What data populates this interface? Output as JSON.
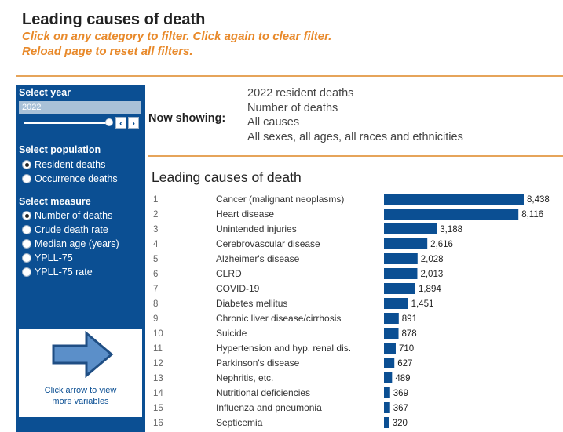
{
  "header": {
    "title": "Leading causes of death",
    "instruction_1": "Click on any category to filter. Click again to clear filter.",
    "instruction_2": "Reload page to reset all filters."
  },
  "sidebar": {
    "year_heading": "Select year",
    "year_value": "2022",
    "population_heading": "Select population",
    "population_options": [
      {
        "label": "Resident deaths",
        "selected": true
      },
      {
        "label": "Occurrence deaths",
        "selected": false
      }
    ],
    "measure_heading": "Select measure",
    "measure_options": [
      {
        "label": "Number of deaths",
        "selected": true
      },
      {
        "label": "Crude death rate",
        "selected": false
      },
      {
        "label": "Median age (years)",
        "selected": false
      },
      {
        "label": "YPLL-75",
        "selected": false
      },
      {
        "label": "YPLL-75 rate",
        "selected": false
      }
    ],
    "more_label_1": "Click arrow to view",
    "more_label_2": "more variables"
  },
  "now_showing": {
    "label": "Now showing:",
    "lines": [
      "2022 resident deaths",
      "Number of deaths",
      "All causes",
      "All sexes, all ages, all races and ethnicities"
    ]
  },
  "colors": {
    "accent": "#e8892a",
    "rule": "#e6a45a",
    "sidebar": "#0b4f93",
    "bar": "#0b4f93"
  },
  "chart_data": {
    "type": "bar",
    "orientation": "horizontal",
    "title": "Leading causes of death",
    "xlabel": "",
    "ylabel": "",
    "xlim": [
      0,
      8438
    ],
    "ranks": [
      "1",
      "2",
      "3",
      "4",
      "5",
      "6",
      "7",
      "8",
      "9",
      "10",
      "11",
      "12",
      "13",
      "14",
      "15",
      "16"
    ],
    "categories": [
      "Cancer (malignant neoplasms)",
      "Heart disease",
      "Unintended injuries",
      "Cerebrovascular disease",
      "Alzheimer's disease",
      "CLRD",
      "COVID-19",
      "Diabetes mellitus",
      "Chronic liver disease/cirrhosis",
      "Suicide",
      "Hypertension and hyp. renal dis.",
      "Parkinson's disease",
      "Nephritis, etc.",
      "Nutritional deficiencies",
      "Influenza and pneumonia",
      "Septicemia"
    ],
    "values": [
      8438,
      8116,
      3188,
      2616,
      2028,
      2013,
      1894,
      1451,
      891,
      878,
      710,
      627,
      489,
      369,
      367,
      320
    ],
    "value_labels": [
      "8,438",
      "8,116",
      "3,188",
      "2,616",
      "2,028",
      "2,013",
      "1,894",
      "1,451",
      "891",
      "878",
      "710",
      "627",
      "489",
      "369",
      "367",
      "320"
    ]
  }
}
